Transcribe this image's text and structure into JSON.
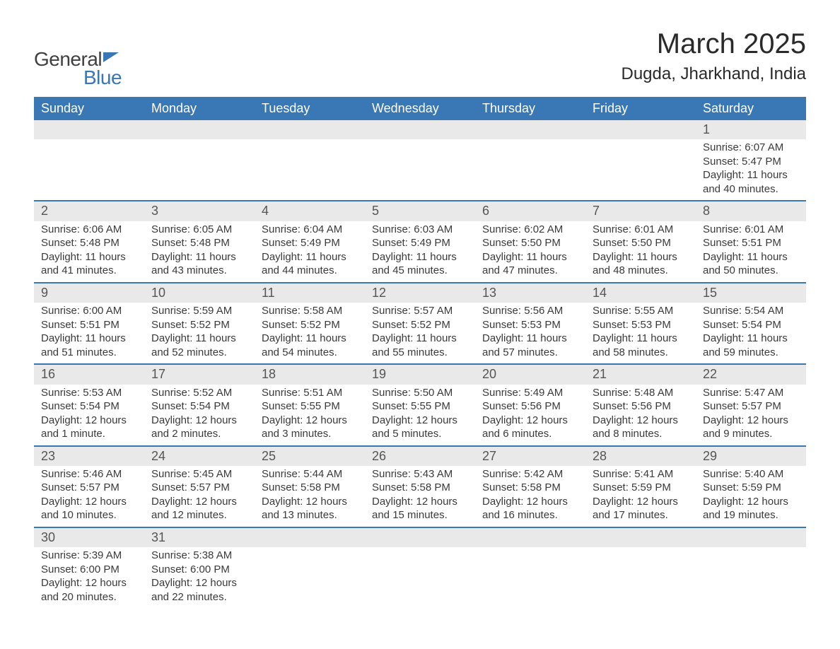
{
  "logo": {
    "word1": "General",
    "word2": "Blue"
  },
  "title": {
    "month": "March 2025",
    "location": "Dugda, Jharkhand, India"
  },
  "colors": {
    "header_bg": "#3a77b5",
    "header_text": "#ffffff",
    "daynum_bg": "#e9e9e9",
    "row_border": "#3a77b5",
    "body_text": "#3a3a3a",
    "page_bg": "#ffffff"
  },
  "weekdays": [
    "Sunday",
    "Monday",
    "Tuesday",
    "Wednesday",
    "Thursday",
    "Friday",
    "Saturday"
  ],
  "weeks": [
    [
      null,
      null,
      null,
      null,
      null,
      null,
      {
        "d": "1",
        "sunrise": "Sunrise: 6:07 AM",
        "sunset": "Sunset: 5:47 PM",
        "day1": "Daylight: 11 hours",
        "day2": "and 40 minutes."
      }
    ],
    [
      {
        "d": "2",
        "sunrise": "Sunrise: 6:06 AM",
        "sunset": "Sunset: 5:48 PM",
        "day1": "Daylight: 11 hours",
        "day2": "and 41 minutes."
      },
      {
        "d": "3",
        "sunrise": "Sunrise: 6:05 AM",
        "sunset": "Sunset: 5:48 PM",
        "day1": "Daylight: 11 hours",
        "day2": "and 43 minutes."
      },
      {
        "d": "4",
        "sunrise": "Sunrise: 6:04 AM",
        "sunset": "Sunset: 5:49 PM",
        "day1": "Daylight: 11 hours",
        "day2": "and 44 minutes."
      },
      {
        "d": "5",
        "sunrise": "Sunrise: 6:03 AM",
        "sunset": "Sunset: 5:49 PM",
        "day1": "Daylight: 11 hours",
        "day2": "and 45 minutes."
      },
      {
        "d": "6",
        "sunrise": "Sunrise: 6:02 AM",
        "sunset": "Sunset: 5:50 PM",
        "day1": "Daylight: 11 hours",
        "day2": "and 47 minutes."
      },
      {
        "d": "7",
        "sunrise": "Sunrise: 6:01 AM",
        "sunset": "Sunset: 5:50 PM",
        "day1": "Daylight: 11 hours",
        "day2": "and 48 minutes."
      },
      {
        "d": "8",
        "sunrise": "Sunrise: 6:01 AM",
        "sunset": "Sunset: 5:51 PM",
        "day1": "Daylight: 11 hours",
        "day2": "and 50 minutes."
      }
    ],
    [
      {
        "d": "9",
        "sunrise": "Sunrise: 6:00 AM",
        "sunset": "Sunset: 5:51 PM",
        "day1": "Daylight: 11 hours",
        "day2": "and 51 minutes."
      },
      {
        "d": "10",
        "sunrise": "Sunrise: 5:59 AM",
        "sunset": "Sunset: 5:52 PM",
        "day1": "Daylight: 11 hours",
        "day2": "and 52 minutes."
      },
      {
        "d": "11",
        "sunrise": "Sunrise: 5:58 AM",
        "sunset": "Sunset: 5:52 PM",
        "day1": "Daylight: 11 hours",
        "day2": "and 54 minutes."
      },
      {
        "d": "12",
        "sunrise": "Sunrise: 5:57 AM",
        "sunset": "Sunset: 5:52 PM",
        "day1": "Daylight: 11 hours",
        "day2": "and 55 minutes."
      },
      {
        "d": "13",
        "sunrise": "Sunrise: 5:56 AM",
        "sunset": "Sunset: 5:53 PM",
        "day1": "Daylight: 11 hours",
        "day2": "and 57 minutes."
      },
      {
        "d": "14",
        "sunrise": "Sunrise: 5:55 AM",
        "sunset": "Sunset: 5:53 PM",
        "day1": "Daylight: 11 hours",
        "day2": "and 58 minutes."
      },
      {
        "d": "15",
        "sunrise": "Sunrise: 5:54 AM",
        "sunset": "Sunset: 5:54 PM",
        "day1": "Daylight: 11 hours",
        "day2": "and 59 minutes."
      }
    ],
    [
      {
        "d": "16",
        "sunrise": "Sunrise: 5:53 AM",
        "sunset": "Sunset: 5:54 PM",
        "day1": "Daylight: 12 hours",
        "day2": "and 1 minute."
      },
      {
        "d": "17",
        "sunrise": "Sunrise: 5:52 AM",
        "sunset": "Sunset: 5:54 PM",
        "day1": "Daylight: 12 hours",
        "day2": "and 2 minutes."
      },
      {
        "d": "18",
        "sunrise": "Sunrise: 5:51 AM",
        "sunset": "Sunset: 5:55 PM",
        "day1": "Daylight: 12 hours",
        "day2": "and 3 minutes."
      },
      {
        "d": "19",
        "sunrise": "Sunrise: 5:50 AM",
        "sunset": "Sunset: 5:55 PM",
        "day1": "Daylight: 12 hours",
        "day2": "and 5 minutes."
      },
      {
        "d": "20",
        "sunrise": "Sunrise: 5:49 AM",
        "sunset": "Sunset: 5:56 PM",
        "day1": "Daylight: 12 hours",
        "day2": "and 6 minutes."
      },
      {
        "d": "21",
        "sunrise": "Sunrise: 5:48 AM",
        "sunset": "Sunset: 5:56 PM",
        "day1": "Daylight: 12 hours",
        "day2": "and 8 minutes."
      },
      {
        "d": "22",
        "sunrise": "Sunrise: 5:47 AM",
        "sunset": "Sunset: 5:57 PM",
        "day1": "Daylight: 12 hours",
        "day2": "and 9 minutes."
      }
    ],
    [
      {
        "d": "23",
        "sunrise": "Sunrise: 5:46 AM",
        "sunset": "Sunset: 5:57 PM",
        "day1": "Daylight: 12 hours",
        "day2": "and 10 minutes."
      },
      {
        "d": "24",
        "sunrise": "Sunrise: 5:45 AM",
        "sunset": "Sunset: 5:57 PM",
        "day1": "Daylight: 12 hours",
        "day2": "and 12 minutes."
      },
      {
        "d": "25",
        "sunrise": "Sunrise: 5:44 AM",
        "sunset": "Sunset: 5:58 PM",
        "day1": "Daylight: 12 hours",
        "day2": "and 13 minutes."
      },
      {
        "d": "26",
        "sunrise": "Sunrise: 5:43 AM",
        "sunset": "Sunset: 5:58 PM",
        "day1": "Daylight: 12 hours",
        "day2": "and 15 minutes."
      },
      {
        "d": "27",
        "sunrise": "Sunrise: 5:42 AM",
        "sunset": "Sunset: 5:58 PM",
        "day1": "Daylight: 12 hours",
        "day2": "and 16 minutes."
      },
      {
        "d": "28",
        "sunrise": "Sunrise: 5:41 AM",
        "sunset": "Sunset: 5:59 PM",
        "day1": "Daylight: 12 hours",
        "day2": "and 17 minutes."
      },
      {
        "d": "29",
        "sunrise": "Sunrise: 5:40 AM",
        "sunset": "Sunset: 5:59 PM",
        "day1": "Daylight: 12 hours",
        "day2": "and 19 minutes."
      }
    ],
    [
      {
        "d": "30",
        "sunrise": "Sunrise: 5:39 AM",
        "sunset": "Sunset: 6:00 PM",
        "day1": "Daylight: 12 hours",
        "day2": "and 20 minutes."
      },
      {
        "d": "31",
        "sunrise": "Sunrise: 5:38 AM",
        "sunset": "Sunset: 6:00 PM",
        "day1": "Daylight: 12 hours",
        "day2": "and 22 minutes."
      },
      null,
      null,
      null,
      null,
      null
    ]
  ]
}
